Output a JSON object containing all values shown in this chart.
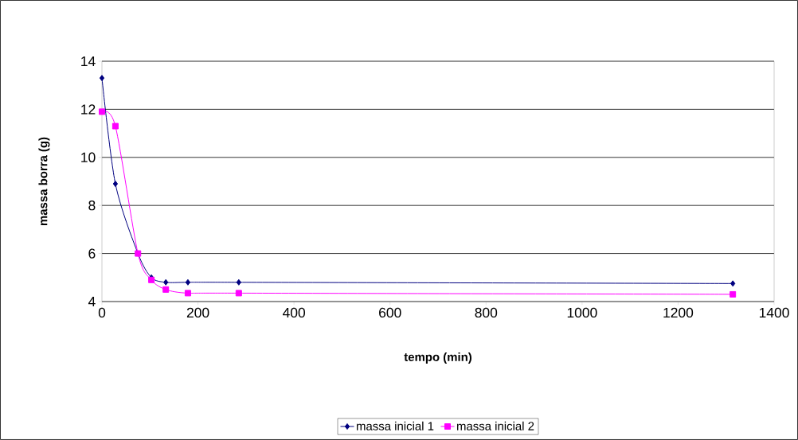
{
  "chart_data": {
    "type": "line",
    "xlabel": "tempo (min)",
    "ylabel": "massa borra (g)",
    "x": [
      0,
      28,
      75,
      103,
      133,
      179,
      285,
      1314
    ],
    "series": [
      {
        "name": "massa inicial 1",
        "color": "#000080",
        "marker": "diamond",
        "values": [
          13.3,
          8.9,
          6.0,
          5.0,
          4.8,
          4.8,
          4.8,
          4.75
        ]
      },
      {
        "name": "massa inicial 2",
        "color": "#ff00ff",
        "marker": "square",
        "values": [
          11.9,
          11.3,
          6.0,
          4.9,
          4.5,
          4.35,
          4.35,
          4.3
        ]
      }
    ],
    "xlim": [
      0,
      1400
    ],
    "xticks": [
      0,
      200,
      400,
      600,
      800,
      1000,
      1200,
      1400
    ],
    "ylim": [
      4,
      14
    ],
    "yticks": [
      4,
      6,
      8,
      10,
      12,
      14
    ],
    "grid": "y",
    "legend": "bottom"
  }
}
